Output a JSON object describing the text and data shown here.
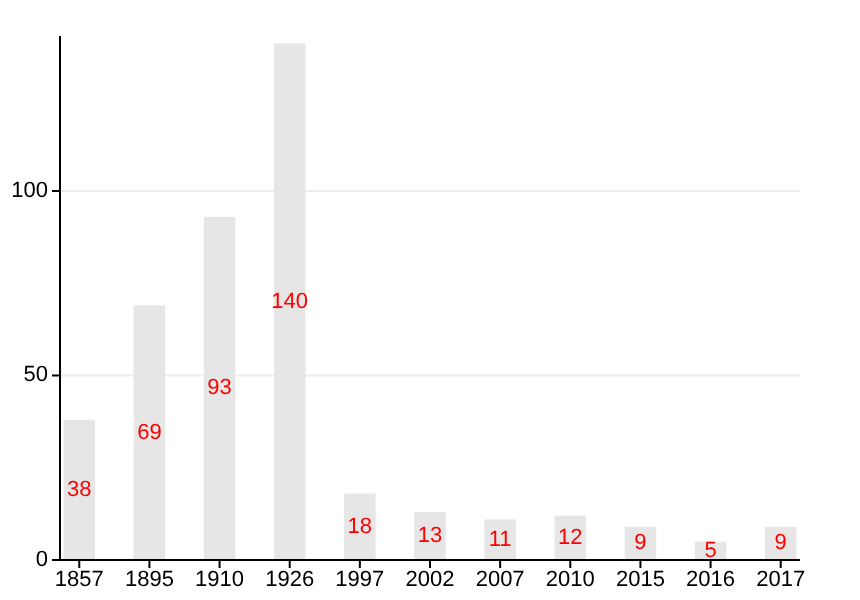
{
  "chart_data": {
    "type": "bar",
    "categories": [
      "1857",
      "1895",
      "1910",
      "1926",
      "1997",
      "2002",
      "2007",
      "2010",
      "2015",
      "2016",
      "2017"
    ],
    "values": [
      38,
      69,
      93,
      140,
      18,
      13,
      11,
      12,
      9,
      5,
      9
    ],
    "color": "#e6e6e6",
    "ylim": [
      0,
      142
    ],
    "yticks": [
      0,
      50,
      100
    ],
    "grid": "y",
    "data_labels": true
  }
}
